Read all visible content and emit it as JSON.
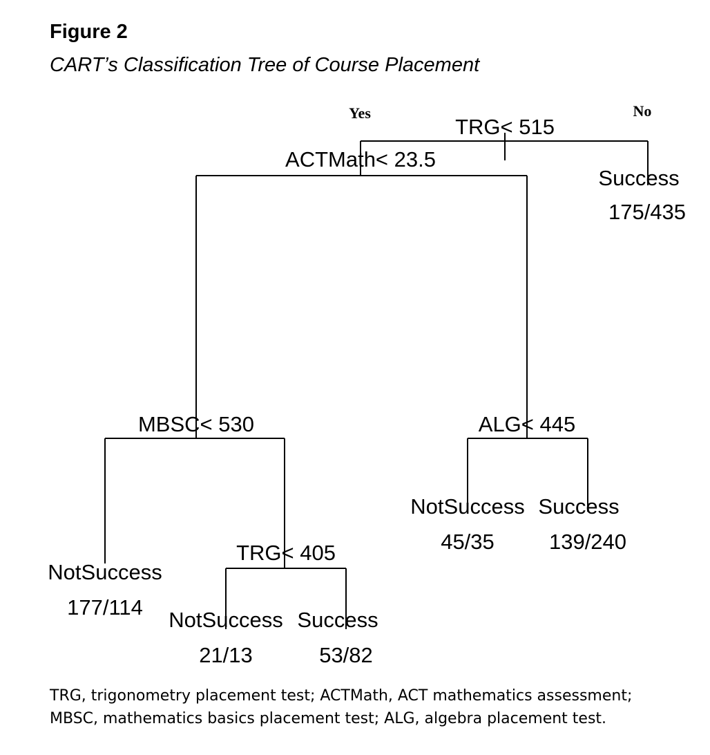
{
  "figure": {
    "label": "Figure 2",
    "caption": "CART’s Classification Tree of Course Placement"
  },
  "tree": {
    "branch_labels": {
      "left": "Yes",
      "right": "No"
    },
    "splits": {
      "root": "TRG< 515",
      "actmath": "ACTMath< 23.5",
      "mbsc": "MBSC< 530",
      "alg": "ALG< 445",
      "trg405": "TRG< 405"
    },
    "leaves": {
      "root_right": {
        "class": "Success",
        "counts": "175/435"
      },
      "mbsc_left": {
        "class": "NotSuccess",
        "counts": "177/114"
      },
      "trg405_left": {
        "class": "NotSuccess",
        "counts": "21/13"
      },
      "trg405_right": {
        "class": "Success",
        "counts": "53/82"
      },
      "alg_left": {
        "class": "NotSuccess",
        "counts": "45/35"
      },
      "alg_right": {
        "class": "Success",
        "counts": "139/240"
      }
    }
  },
  "footnote": {
    "line1": "TRG, trigonometry placement test; ACTMath, ACT mathematics assessment;",
    "line2": "MBSC, mathematics basics placement test; ALG, algebra placement test."
  }
}
